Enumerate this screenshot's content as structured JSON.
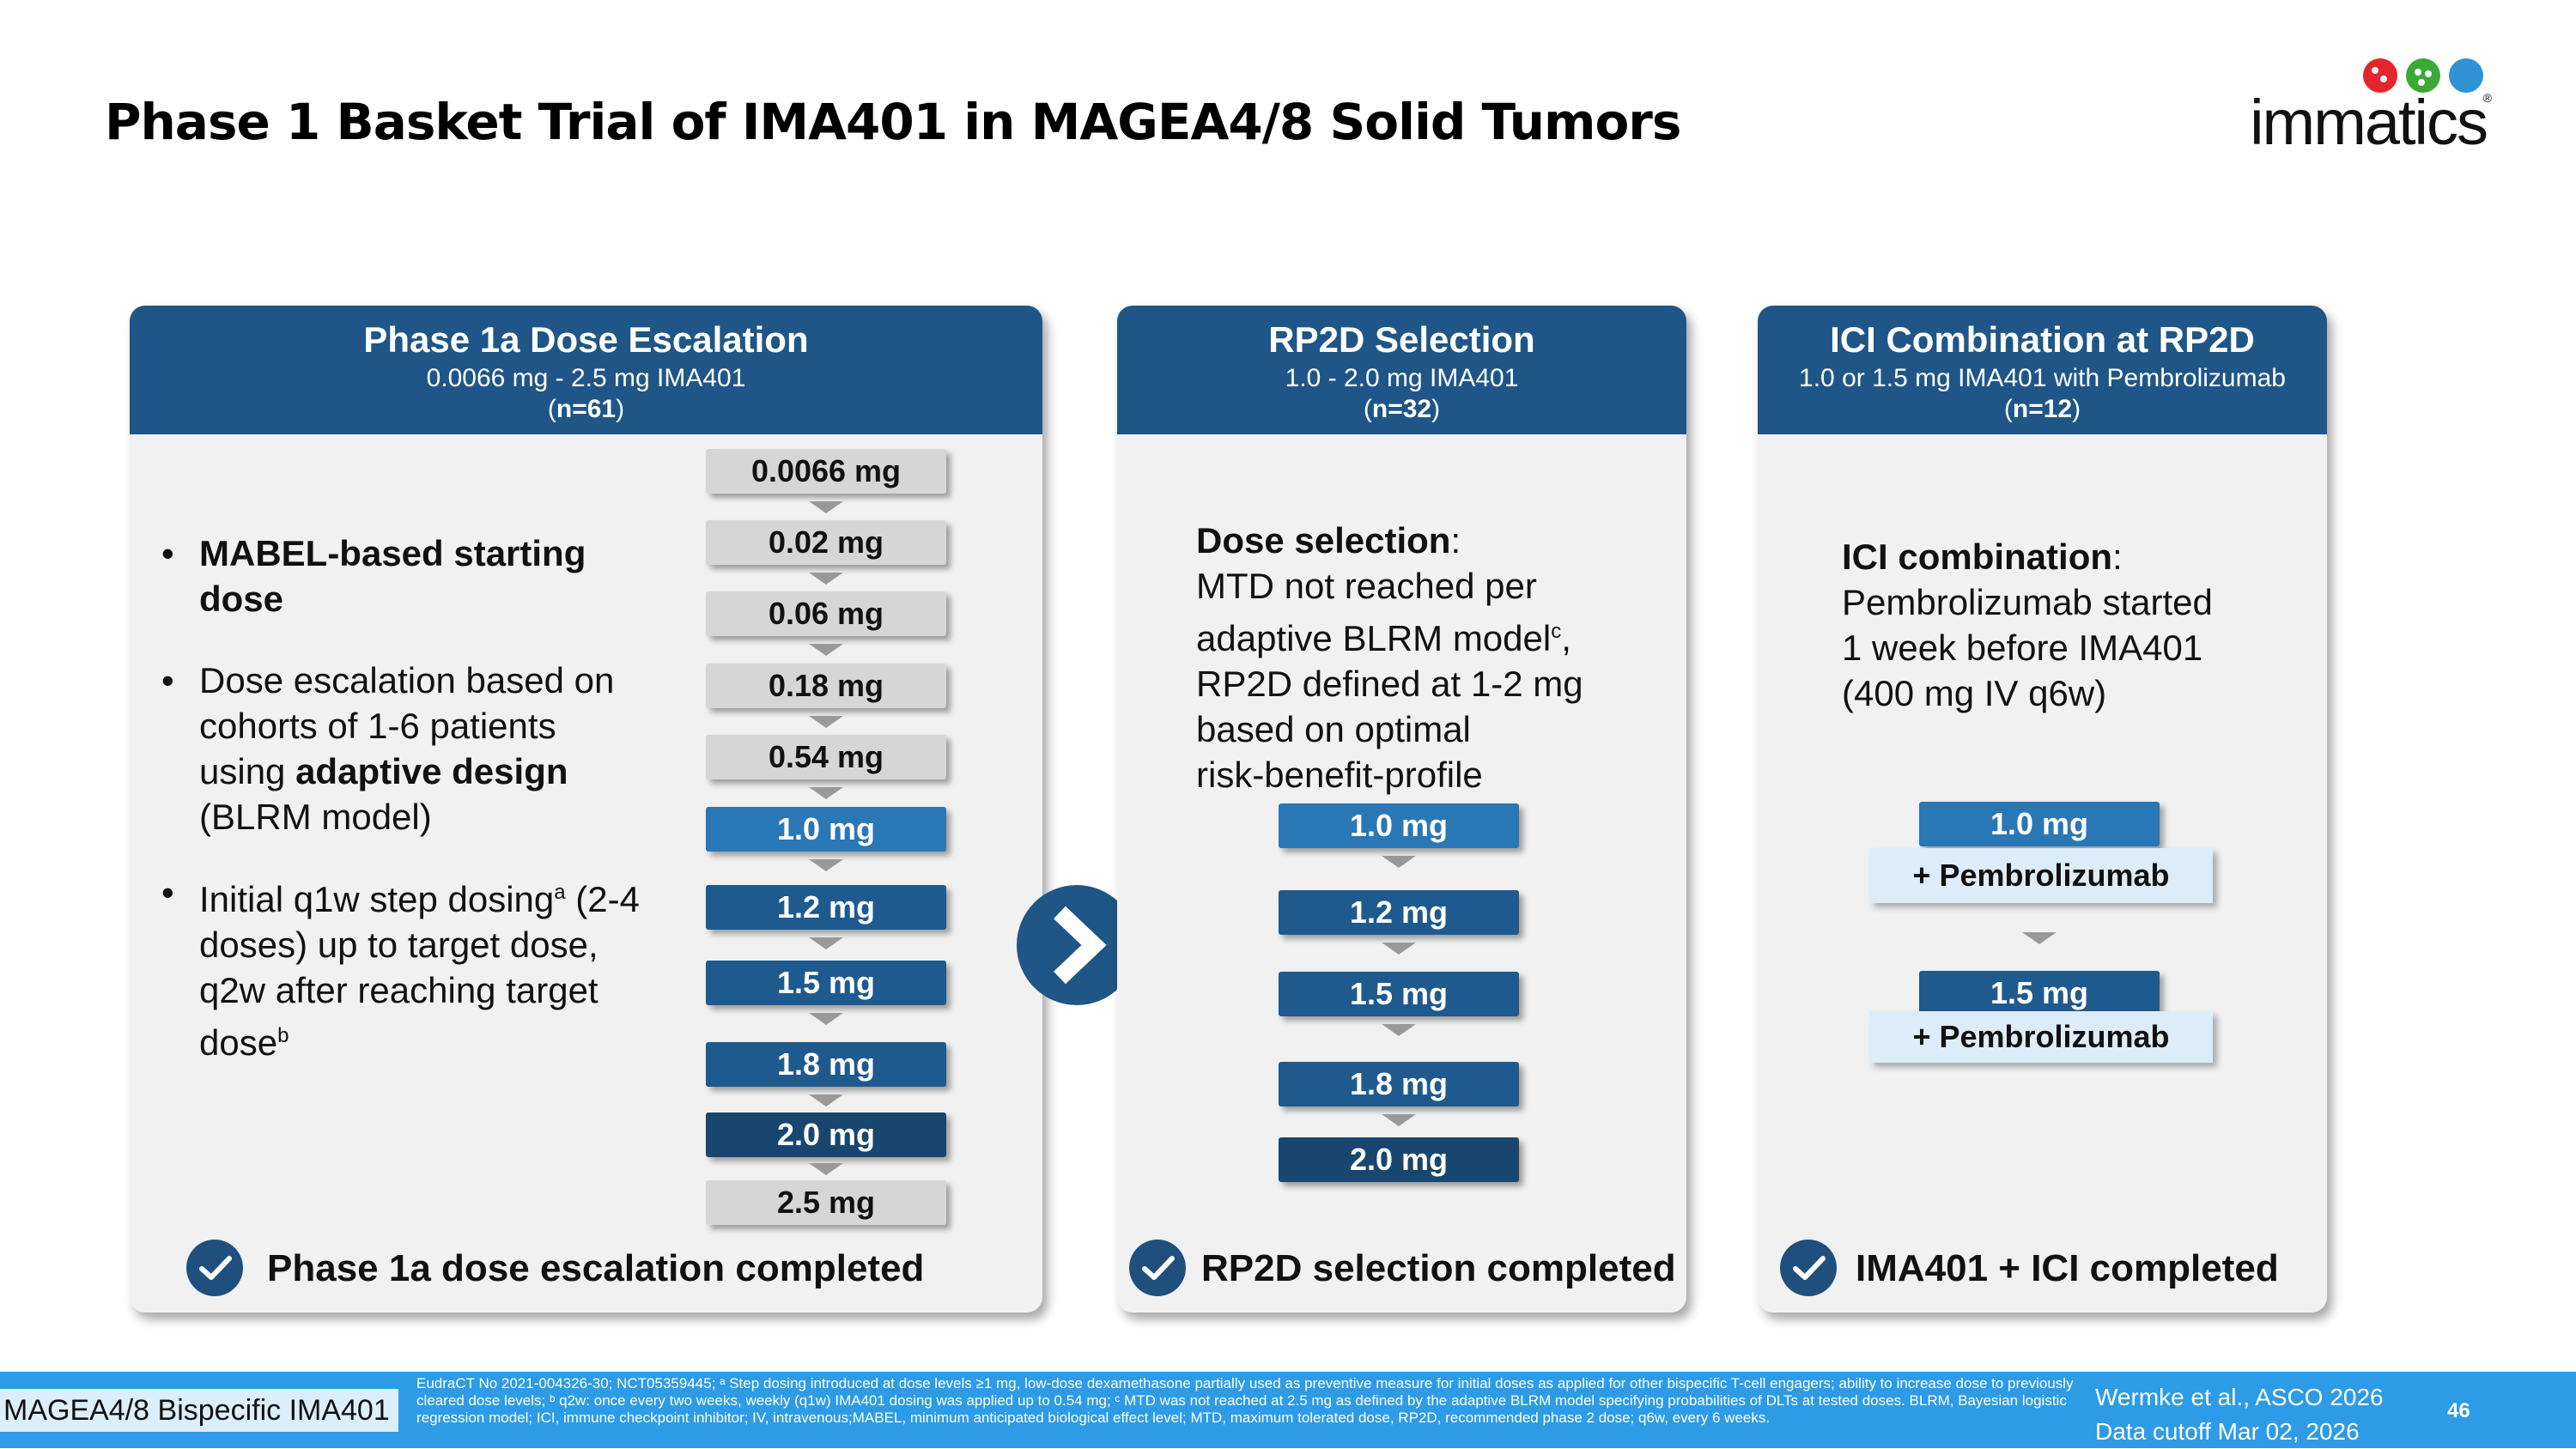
{
  "title": "Phase 1 Basket Trial of IMA401 in MAGEA4/8 Solid Tumors",
  "logo": {
    "text": "immatics",
    "registered": "®",
    "dot_colors": [
      "#e5242b",
      "#3aa935",
      "#2f93d6"
    ]
  },
  "panel1": {
    "heading": "Phase 1a Dose Escalation",
    "subheading": "0.0066 mg - 2.5 mg IMA401",
    "n_open": "(",
    "n": "n=61",
    "n_close": ")",
    "bullets": [
      {
        "bold": "MABEL-based starting dose"
      },
      {
        "pre": "Dose escalation based on cohorts of 1-6 patients using ",
        "bold": "adaptive design",
        "post": " (BLRM model)"
      },
      {
        "pre": "Initial q1w step dosing",
        "sup1": "a",
        "mid": " (2-4 doses) up to target dose, q2w after reaching target dose",
        "sup2": "b"
      }
    ],
    "doses": [
      "0.0066 mg",
      "0.02 mg",
      "0.06 mg",
      "0.18 mg",
      "0.54 mg",
      "1.0 mg",
      "1.2 mg",
      "1.5 mg",
      "1.8 mg",
      "2.0 mg",
      "2.5 mg"
    ],
    "completed": "Phase 1a dose escalation completed"
  },
  "panel2": {
    "heading": "RP2D Selection",
    "subheading": "1.0 - 2.0 mg IMA401",
    "n_open": "(",
    "n": "n=32",
    "n_close": ")",
    "text_bold": "Dose selection",
    "text_colon": ":",
    "line1": "MTD not reached per",
    "line2": "adaptive BLRM model",
    "line2_sup": "c",
    "line2_end": ",",
    "line3": "RP2D defined at 1-2 mg",
    "line4": "based on optimal",
    "line5": "risk-benefit-profile",
    "doses": [
      "1.0 mg",
      "1.2 mg",
      "1.5 mg",
      "1.8 mg",
      "2.0 mg"
    ],
    "completed": "RP2D selection completed"
  },
  "panel3": {
    "heading": "ICI Combination at RP2D",
    "subheading": "1.0 or 1.5 mg IMA401 with Pembrolizumab",
    "n_open": "(",
    "n": "n=12",
    "n_close": ")",
    "text_bold": "ICI combination",
    "text_colon": ":",
    "line1": "Pembrolizumab started",
    "line2": "1 week before IMA401",
    "line3": "(400 mg IV q6w)",
    "doses": [
      "1.0 mg",
      "1.5 mg"
    ],
    "combo": "+ Pembrolizumab",
    "completed": "IMA401 + ICI completed"
  },
  "footer": {
    "tag": "MAGEA4/8 Bispecific IMA401",
    "note": "EudraCT No 2021-004326-30; NCT05359445; ᵃ Step dosing introduced at dose levels ≥1 mg, low-dose dexamethasone partially used as preventive measure for initial doses as applied for other bispecific T-cell engagers; ability to increase dose to previously cleared dose levels; ᵇ q2w: once every two weeks, weekly (q1w) IMA401 dosing was applied up to 0.54 mg; ᶜ MTD was not reached at 2.5 mg as defined by the adaptive BLRM model specifying probabilities of DLTs at tested doses. BLRM, Bayesian logistic regression model; ICI, immune checkpoint inhibitor; IV, intravenous;MABEL, minimum anticipated biological effect level; MTD, maximum tolerated dose, RP2D, recommended phase 2 dose; q6w, every 6 weeks.",
    "ref1": "Wermke et al., ASCO 2026",
    "ref2": "Data cutoff Mar 02, 2026",
    "page": "46"
  },
  "colors": {
    "header_blue": "#1f5687",
    "footer_blue": "#2d9be6",
    "panel_bg": "#f1f1f1"
  }
}
